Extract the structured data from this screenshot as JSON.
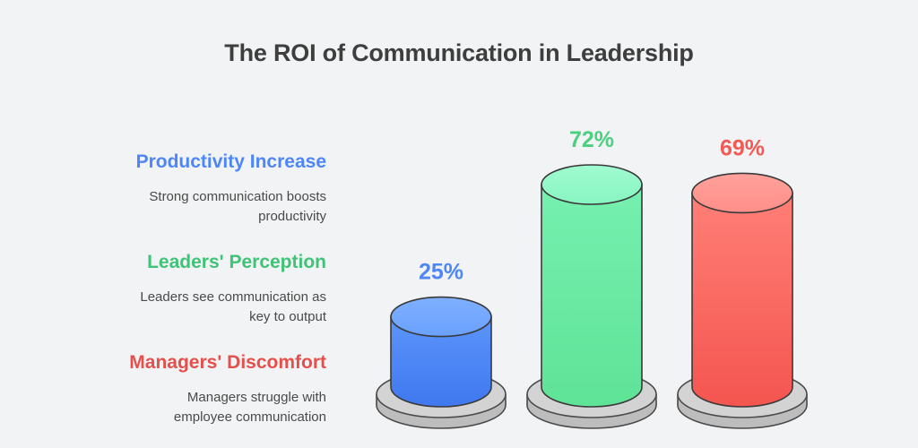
{
  "chart_data": {
    "type": "bar",
    "title": "The ROI of Communication in Leadership",
    "categories": [
      "Productivity Increase",
      "Leaders' Perception",
      "Managers' Discomfort"
    ],
    "values": [
      25,
      72,
      69
    ],
    "value_labels": [
      "25%",
      "72%",
      "69%"
    ],
    "unit": "%",
    "descriptions": [
      "Strong communication boosts productivity",
      "Leaders see communication as key to output",
      "Managers struggle with employee communication"
    ],
    "description_lines": [
      [
        "Strong communication boosts",
        "productivity"
      ],
      [
        "Leaders see communication as",
        "key to output"
      ],
      [
        "Managers struggle with",
        "employee communication"
      ]
    ],
    "colors": [
      "#4f86f7",
      "#4ccf80",
      "#f25a55"
    ],
    "ylim": [
      0,
      100
    ],
    "grid": false,
    "legend": "left"
  }
}
